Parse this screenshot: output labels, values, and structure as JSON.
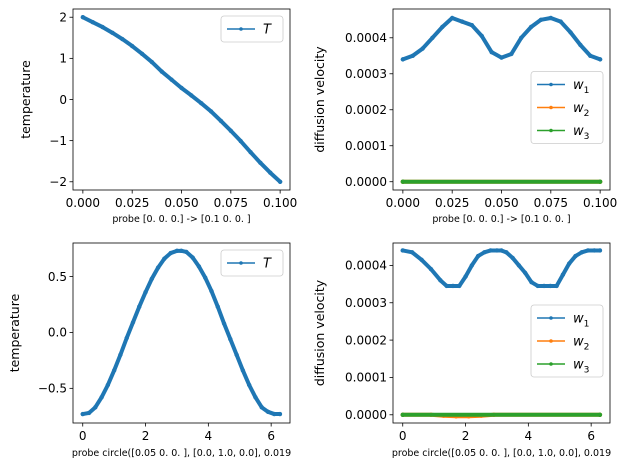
{
  "chart_data": [
    {
      "type": "line",
      "xlabel": "probe [0. 0. 0.] -> [0.1 0.  0. ]",
      "ylabel": "temperature",
      "xlim": [
        -0.005,
        0.105
      ],
      "ylim": [
        -2.2,
        2.2
      ],
      "xticks": [
        0.0,
        0.025,
        0.05,
        0.075,
        0.1
      ],
      "xticklabels": [
        "0.000",
        "0.025",
        "0.050",
        "0.075",
        "0.100"
      ],
      "yticks": [
        -2,
        -1,
        0,
        1,
        2
      ],
      "yticklabels": [
        "−2",
        "−1",
        "0",
        "1",
        "2"
      ],
      "legend": "upper-right",
      "series": [
        {
          "name": "T",
          "color": "#1f77b4",
          "x": [
            0.0,
            0.005,
            0.01,
            0.015,
            0.02,
            0.025,
            0.03,
            0.035,
            0.04,
            0.045,
            0.05,
            0.055,
            0.06,
            0.065,
            0.07,
            0.075,
            0.08,
            0.085,
            0.09,
            0.095,
            0.1
          ],
          "y": [
            2.0,
            1.88,
            1.76,
            1.62,
            1.47,
            1.3,
            1.11,
            0.91,
            0.68,
            0.48,
            0.28,
            0.1,
            -0.09,
            -0.29,
            -0.52,
            -0.76,
            -1.01,
            -1.28,
            -1.54,
            -1.78,
            -2.0
          ]
        }
      ]
    },
    {
      "type": "line",
      "xlabel": "probe [0. 0. 0.] -> [0.1 0.  0. ]",
      "ylabel": "diffusion velocity",
      "xlim": [
        -0.005,
        0.105
      ],
      "ylim": [
        -2.3e-05,
        0.00048
      ],
      "xticks": [
        0.0,
        0.025,
        0.05,
        0.075,
        0.1
      ],
      "xticklabels": [
        "0.000",
        "0.025",
        "0.050",
        "0.075",
        "0.100"
      ],
      "yticks": [
        0.0,
        0.0001,
        0.0002,
        0.0003,
        0.0004
      ],
      "yticklabels": [
        "0.0000",
        "0.0001",
        "0.0002",
        "0.0003",
        "0.0004"
      ],
      "legend": "center-right",
      "series": [
        {
          "name": "w_1",
          "color": "#1f77b4",
          "x": [
            0.0,
            0.005,
            0.01,
            0.015,
            0.02,
            0.025,
            0.03,
            0.035,
            0.04,
            0.045,
            0.05,
            0.055,
            0.06,
            0.065,
            0.07,
            0.075,
            0.08,
            0.085,
            0.09,
            0.095,
            0.1
          ],
          "y": [
            0.00034,
            0.00035,
            0.00037,
            0.0004,
            0.00043,
            0.000455,
            0.000445,
            0.000435,
            0.000405,
            0.00036,
            0.000345,
            0.000355,
            0.0004,
            0.00043,
            0.00045,
            0.000455,
            0.000445,
            0.000415,
            0.00038,
            0.00035,
            0.00034
          ]
        },
        {
          "name": "w_2",
          "color": "#ff7f0e",
          "x": [
            0.0,
            0.1
          ],
          "y": [
            0.0,
            0.0
          ]
        },
        {
          "name": "w_3",
          "color": "#2ca02c",
          "x": [
            0.0,
            0.1
          ],
          "y": [
            0.0,
            0.0
          ]
        }
      ]
    },
    {
      "type": "line",
      "xlabel": "probe circle([0.05 0.   0.  ], [0.0, 1.0, 0.0], 0.019",
      "ylabel": "temperature",
      "xlim": [
        -0.31,
        6.6
      ],
      "ylim": [
        -0.81,
        0.8
      ],
      "xticks": [
        0,
        2,
        4,
        6
      ],
      "xticklabels": [
        "0",
        "2",
        "4",
        "6"
      ],
      "yticks": [
        -0.5,
        0.0,
        0.5
      ],
      "yticklabels": [
        "−0.5",
        "0.0",
        "0.5"
      ],
      "legend": "upper-right",
      "series": [
        {
          "name": "T",
          "color": "#1f77b4",
          "x": [
            0.0,
            0.2,
            0.4,
            0.6,
            0.8,
            1.0,
            1.2,
            1.4,
            1.6,
            1.8,
            2.0,
            2.2,
            2.4,
            2.6,
            2.8,
            3.0,
            3.14,
            3.3,
            3.5,
            3.7,
            3.9,
            4.1,
            4.3,
            4.5,
            4.7,
            4.9,
            5.1,
            5.3,
            5.5,
            5.7,
            5.9,
            6.1,
            6.28
          ],
          "y": [
            -0.73,
            -0.72,
            -0.67,
            -0.58,
            -0.47,
            -0.34,
            -0.2,
            -0.05,
            0.09,
            0.23,
            0.36,
            0.48,
            0.58,
            0.66,
            0.71,
            0.73,
            0.73,
            0.72,
            0.67,
            0.59,
            0.49,
            0.37,
            0.23,
            0.08,
            -0.06,
            -0.2,
            -0.34,
            -0.47,
            -0.58,
            -0.67,
            -0.71,
            -0.73,
            -0.73
          ]
        }
      ]
    },
    {
      "type": "line",
      "xlabel": "probe circle([0.05 0.   0.  ], [0.0, 1.0, 0.0], 0.019",
      "ylabel": "diffusion velocity",
      "xlim": [
        -0.31,
        6.6
      ],
      "ylim": [
        -2.2e-05,
        0.00046
      ],
      "xticks": [
        0,
        2,
        4,
        6
      ],
      "xticklabels": [
        "0",
        "2",
        "4",
        "6"
      ],
      "yticks": [
        0.0,
        0.0001,
        0.0002,
        0.0003,
        0.0004
      ],
      "yticklabels": [
        "0.0000",
        "0.0001",
        "0.0002",
        "0.0003",
        "0.0004"
      ],
      "legend": "center-right",
      "series": [
        {
          "name": "w_1",
          "color": "#1f77b4",
          "x": [
            0.0,
            0.3,
            0.6,
            0.9,
            1.2,
            1.4,
            1.6,
            1.8,
            2.0,
            2.2,
            2.4,
            2.6,
            2.8,
            3.0,
            3.14,
            3.3,
            3.5,
            3.7,
            3.9,
            4.1,
            4.3,
            4.5,
            4.7,
            4.9,
            5.1,
            5.3,
            5.5,
            5.7,
            5.9,
            6.1,
            6.28
          ],
          "y": [
            0.00044,
            0.000435,
            0.000415,
            0.00039,
            0.00036,
            0.000345,
            0.000345,
            0.000345,
            0.00037,
            0.0004,
            0.000425,
            0.000435,
            0.00044,
            0.00044,
            0.00044,
            0.000435,
            0.00042,
            0.0004,
            0.00038,
            0.000355,
            0.000345,
            0.000345,
            0.000345,
            0.000345,
            0.000375,
            0.000405,
            0.000425,
            0.000435,
            0.00044,
            0.00044,
            0.00044
          ]
        },
        {
          "name": "w_2",
          "color": "#ff7f0e",
          "x": [
            0.0,
            0.9,
            1.3,
            1.7,
            2.1,
            2.5,
            2.9,
            6.28
          ],
          "y": [
            0.0,
            0.0,
            -2.5e-06,
            -4e-06,
            -4e-06,
            -2.5e-06,
            0.0,
            0.0
          ]
        },
        {
          "name": "w_3",
          "color": "#2ca02c",
          "x": [
            0.0,
            6.28
          ],
          "y": [
            0.0,
            0.0
          ]
        }
      ]
    }
  ]
}
